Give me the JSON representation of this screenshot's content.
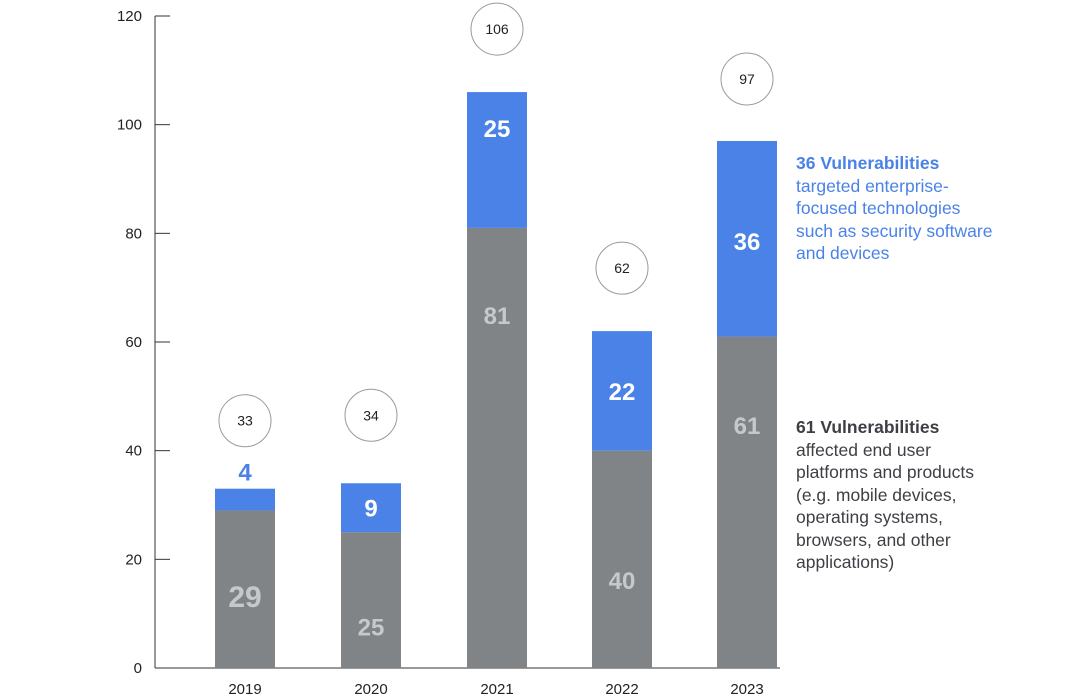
{
  "chart_data": {
    "type": "bar",
    "stacked": true,
    "categories": [
      "2019",
      "2020",
      "2021",
      "2022",
      "2023"
    ],
    "series": [
      {
        "name": "End user platforms and products",
        "color": "#808487",
        "label_color": "#c7c8ca",
        "values": [
          29,
          25,
          81,
          40,
          61
        ]
      },
      {
        "name": "Enterprise-focused technologies",
        "color": "#4a82e8",
        "label_color": "#ffffff",
        "values": [
          4,
          9,
          25,
          22,
          36
        ]
      }
    ],
    "totals": [
      33,
      34,
      106,
      62,
      97
    ],
    "ylim": [
      0,
      120
    ],
    "yticks": [
      0,
      20,
      40,
      60,
      80,
      100,
      120
    ],
    "xlabel": "",
    "ylabel": "",
    "title": ""
  },
  "annotations": {
    "enterprise": {
      "heading": "36 Vulnerabilities",
      "body": "targeted enterprise-focused technologies such as security software and devices"
    },
    "end_user": {
      "heading": "61 Vulnerabilities",
      "body": "affected end user platforms and products (e.g. mobile devices, operating systems, browsers, and other applications)"
    }
  }
}
